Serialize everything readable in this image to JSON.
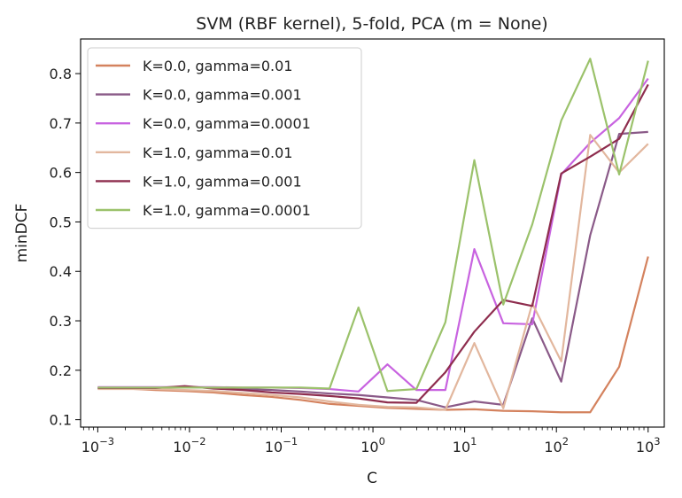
{
  "chart_data": {
    "type": "line",
    "title": "SVM (RBF kernel), 5-fold, PCA (m = None)",
    "xlabel": "C",
    "ylabel": "minDCF",
    "xscale": "log",
    "xlim": [
      0.00065,
      1500
    ],
    "ylim": [
      0.085,
      0.87
    ],
    "x_ticks": [
      {
        "base": "10",
        "exp": "−3"
      },
      {
        "base": "10",
        "exp": "−2"
      },
      {
        "base": "10",
        "exp": "−1"
      },
      {
        "base": "10",
        "exp": "0"
      },
      {
        "base": "10",
        "exp": "1"
      },
      {
        "base": "10",
        "exp": "2"
      },
      {
        "base": "10",
        "exp": "3"
      }
    ],
    "y_ticks": [
      "0.1",
      "0.2",
      "0.3",
      "0.4",
      "0.5",
      "0.6",
      "0.7",
      "0.8"
    ],
    "legend_position": "upper-left",
    "x": [
      0.001,
      0.00207,
      0.00428,
      0.00886,
      0.01833,
      0.03793,
      0.07848,
      0.16238,
      0.33598,
      0.69519,
      1.43845,
      2.97635,
      6.15848,
      12.74275,
      26.36651,
      54.55595,
      112.88379,
      233.57215,
      483.29302,
      1000
    ],
    "series": [
      {
        "name": "K=0.0, gamma=0.01",
        "color": "#d4825e",
        "values": [
          0.163,
          0.163,
          0.16,
          0.158,
          0.155,
          0.15,
          0.146,
          0.14,
          0.132,
          0.128,
          0.124,
          0.122,
          0.12,
          0.121,
          0.118,
          0.117,
          0.115,
          0.115,
          0.207,
          0.43
        ]
      },
      {
        "name": "K=0.0, gamma=0.001",
        "color": "#8a5a88",
        "values": [
          0.165,
          0.165,
          0.165,
          0.165,
          0.165,
          0.162,
          0.16,
          0.157,
          0.153,
          0.15,
          0.145,
          0.14,
          0.125,
          0.137,
          0.13,
          0.305,
          0.177,
          0.473,
          0.678,
          0.682
        ]
      },
      {
        "name": "K=0.0, gamma=0.0001",
        "color": "#c863e0",
        "values": [
          0.166,
          0.166,
          0.166,
          0.166,
          0.166,
          0.165,
          0.165,
          0.164,
          0.162,
          0.157,
          0.212,
          0.16,
          0.16,
          0.445,
          0.295,
          0.293,
          0.596,
          0.66,
          0.71,
          0.79
        ]
      },
      {
        "name": "K=1.0, gamma=0.01",
        "color": "#e2b79e",
        "values": [
          0.162,
          0.162,
          0.162,
          0.16,
          0.158,
          0.154,
          0.15,
          0.145,
          0.137,
          0.13,
          0.126,
          0.125,
          0.12,
          0.255,
          0.123,
          0.335,
          0.218,
          0.676,
          0.6,
          0.658
        ]
      },
      {
        "name": "K=1.0, gamma=0.001",
        "color": "#8e2d4e",
        "values": [
          0.164,
          0.164,
          0.164,
          0.168,
          0.163,
          0.16,
          0.155,
          0.152,
          0.148,
          0.143,
          0.135,
          0.134,
          0.196,
          0.278,
          0.342,
          0.33,
          0.598,
          0.632,
          0.668,
          0.778
        ]
      },
      {
        "name": "K=1.0, gamma=0.0001",
        "color": "#9bc26b",
        "values": [
          0.165,
          0.165,
          0.165,
          0.165,
          0.165,
          0.165,
          0.165,
          0.165,
          0.163,
          0.327,
          0.158,
          0.162,
          0.297,
          0.625,
          0.333,
          0.495,
          0.705,
          0.83,
          0.596,
          0.826
        ]
      }
    ]
  }
}
